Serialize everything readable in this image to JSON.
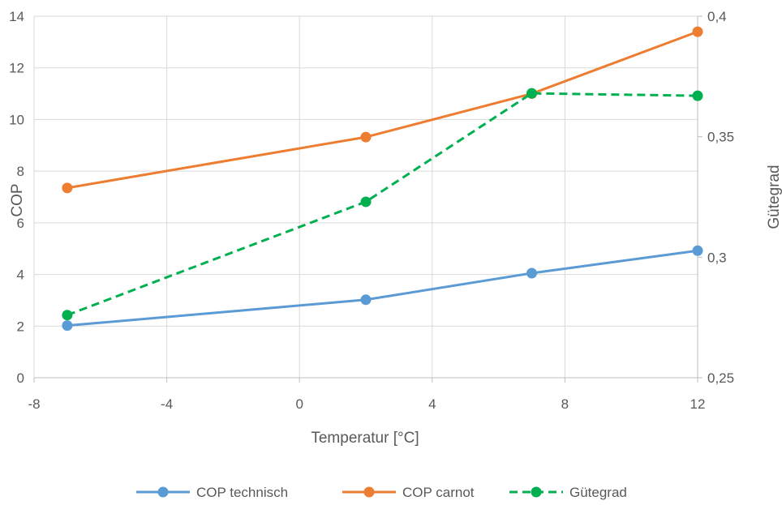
{
  "chart_data": {
    "type": "line",
    "xlabel": "Temperatur [°C]",
    "ylabel": "COP",
    "y2label": "Gütegrad",
    "xlim": [
      -8,
      12
    ],
    "ylim": [
      0,
      14
    ],
    "y2lim": [
      0.25,
      0.4
    ],
    "x_ticks": [
      -8,
      -4,
      0,
      4,
      8,
      12
    ],
    "x_tick_labels": [
      "-8",
      "-4",
      "0",
      "4",
      "8",
      "12"
    ],
    "y_ticks": [
      0,
      2,
      4,
      6,
      8,
      10,
      12,
      14
    ],
    "y_tick_labels": [
      "0",
      "2",
      "4",
      "6",
      "8",
      "10",
      "12",
      "14"
    ],
    "y2_ticks": [
      0.25,
      0.3,
      0.35,
      0.4
    ],
    "y2_tick_labels": [
      "0,25",
      "0,3",
      "0,35",
      "0,4"
    ],
    "grid": true,
    "legend_position": "bottom",
    "series": [
      {
        "name": "COP technisch",
        "axis": "left",
        "color": "#5B9BD5",
        "dash": false,
        "x": [
          -7,
          2,
          7,
          12
        ],
        "values": [
          2.02,
          3.02,
          4.05,
          4.92
        ]
      },
      {
        "name": "COP carnot",
        "axis": "left",
        "color": "#ED7D31",
        "dash": false,
        "x": [
          -7,
          2,
          7,
          12
        ],
        "values": [
          7.35,
          9.32,
          11.0,
          13.4
        ]
      },
      {
        "name": "Gütegrad",
        "axis": "right",
        "color": "#00B050",
        "dash": true,
        "x": [
          -7,
          2,
          7,
          12
        ],
        "values": [
          0.276,
          0.323,
          0.368,
          0.367
        ]
      }
    ]
  }
}
